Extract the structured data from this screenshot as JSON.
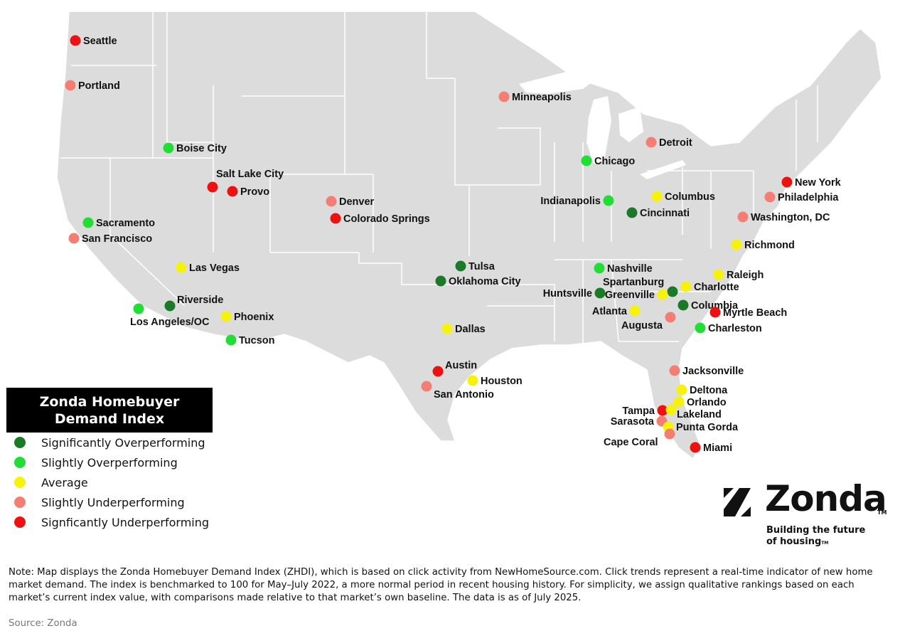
{
  "legend": {
    "title_line1": "Zonda Homebuyer",
    "title_line2": "Demand Index",
    "categories": [
      {
        "key": "sig_over",
        "label": "Significantly Overperforming",
        "color": "#1a7a28"
      },
      {
        "key": "slight_over",
        "label": "Slightly Overperforming",
        "color": "#22dd33"
      },
      {
        "key": "average",
        "label": "Average",
        "color": "#f7f20a"
      },
      {
        "key": "slight_under",
        "label": "Slightly Underperforming",
        "color": "#f47e74"
      },
      {
        "key": "sig_under",
        "label": "Signficantly Underperforming",
        "color": "#ee1111"
      }
    ]
  },
  "cities": [
    {
      "name": "Seattle",
      "category": "sig_under"
    },
    {
      "name": "Portland",
      "category": "slight_under"
    },
    {
      "name": "Boise City",
      "category": "slight_over"
    },
    {
      "name": "Salt Lake City",
      "category": "sig_under"
    },
    {
      "name": "Provo",
      "category": "sig_under"
    },
    {
      "name": "Sacramento",
      "category": "slight_over"
    },
    {
      "name": "San Francisco",
      "category": "slight_under"
    },
    {
      "name": "Las Vegas",
      "category": "average"
    },
    {
      "name": "Riverside",
      "category": "sig_over"
    },
    {
      "name": "Los Angeles/OC",
      "category": "slight_over"
    },
    {
      "name": "Phoenix",
      "category": "average"
    },
    {
      "name": "Tucson",
      "category": "slight_over"
    },
    {
      "name": "Denver",
      "category": "slight_under"
    },
    {
      "name": "Colorado Springs",
      "category": "sig_under"
    },
    {
      "name": "Minneapolis",
      "category": "slight_under"
    },
    {
      "name": "Tulsa",
      "category": "sig_over"
    },
    {
      "name": "Oklahoma City",
      "category": "sig_over"
    },
    {
      "name": "Dallas",
      "category": "average"
    },
    {
      "name": "Austin",
      "category": "sig_under"
    },
    {
      "name": "San Antonio",
      "category": "slight_under"
    },
    {
      "name": "Houston",
      "category": "average"
    },
    {
      "name": "Chicago",
      "category": "slight_over"
    },
    {
      "name": "Detroit",
      "category": "slight_under"
    },
    {
      "name": "Indianapolis",
      "category": "slight_over"
    },
    {
      "name": "Columbus",
      "category": "average"
    },
    {
      "name": "Cincinnati",
      "category": "sig_over"
    },
    {
      "name": "New York",
      "category": "sig_under"
    },
    {
      "name": "Philadelphia",
      "category": "slight_under"
    },
    {
      "name": "Washington, DC",
      "category": "slight_under"
    },
    {
      "name": "Richmond",
      "category": "average"
    },
    {
      "name": "Nashville",
      "category": "slight_over"
    },
    {
      "name": "Raleigh",
      "category": "average"
    },
    {
      "name": "Spartanburg",
      "category": "sig_over"
    },
    {
      "name": "Charlotte",
      "category": "average"
    },
    {
      "name": "Huntsville",
      "category": "sig_over"
    },
    {
      "name": "Greenville",
      "category": "average"
    },
    {
      "name": "Columbia",
      "category": "sig_over"
    },
    {
      "name": "Atlanta",
      "category": "average"
    },
    {
      "name": "Myrtle Beach",
      "category": "sig_under"
    },
    {
      "name": "Augusta",
      "category": "slight_under"
    },
    {
      "name": "Charleston",
      "category": "slight_over"
    },
    {
      "name": "Jacksonville",
      "category": "slight_under"
    },
    {
      "name": "Deltona",
      "category": "average"
    },
    {
      "name": "Orlando",
      "category": "average"
    },
    {
      "name": "Tampa",
      "category": "sig_under"
    },
    {
      "name": "Lakeland",
      "category": "average"
    },
    {
      "name": "Sarasota",
      "category": "slight_under"
    },
    {
      "name": "Punta Gorda",
      "category": "average"
    },
    {
      "name": "Cape Coral",
      "category": "slight_under"
    },
    {
      "name": "Miami",
      "category": "sig_under"
    }
  ],
  "brand": {
    "name": "Zonda",
    "tm": "TM",
    "tagline_line1": "Building the future",
    "tagline_line2": "of housing",
    "tagline_tm": "TM"
  },
  "note": "Note: Map displays the Zonda Homebuyer Demand Index (ZHDI), which is based on click activity from NewHomeSource.com. Click trends represent a real-time indicator of new home market demand. The index is benchmarked to 100 for May–July 2022, a more normal period in recent housing history. For simplicity, we assign qualitative rankings based on each market’s current index value, with comparisons made relative to that market’s own baseline. The data is as of July 2025.",
  "source": "Source: Zonda"
}
